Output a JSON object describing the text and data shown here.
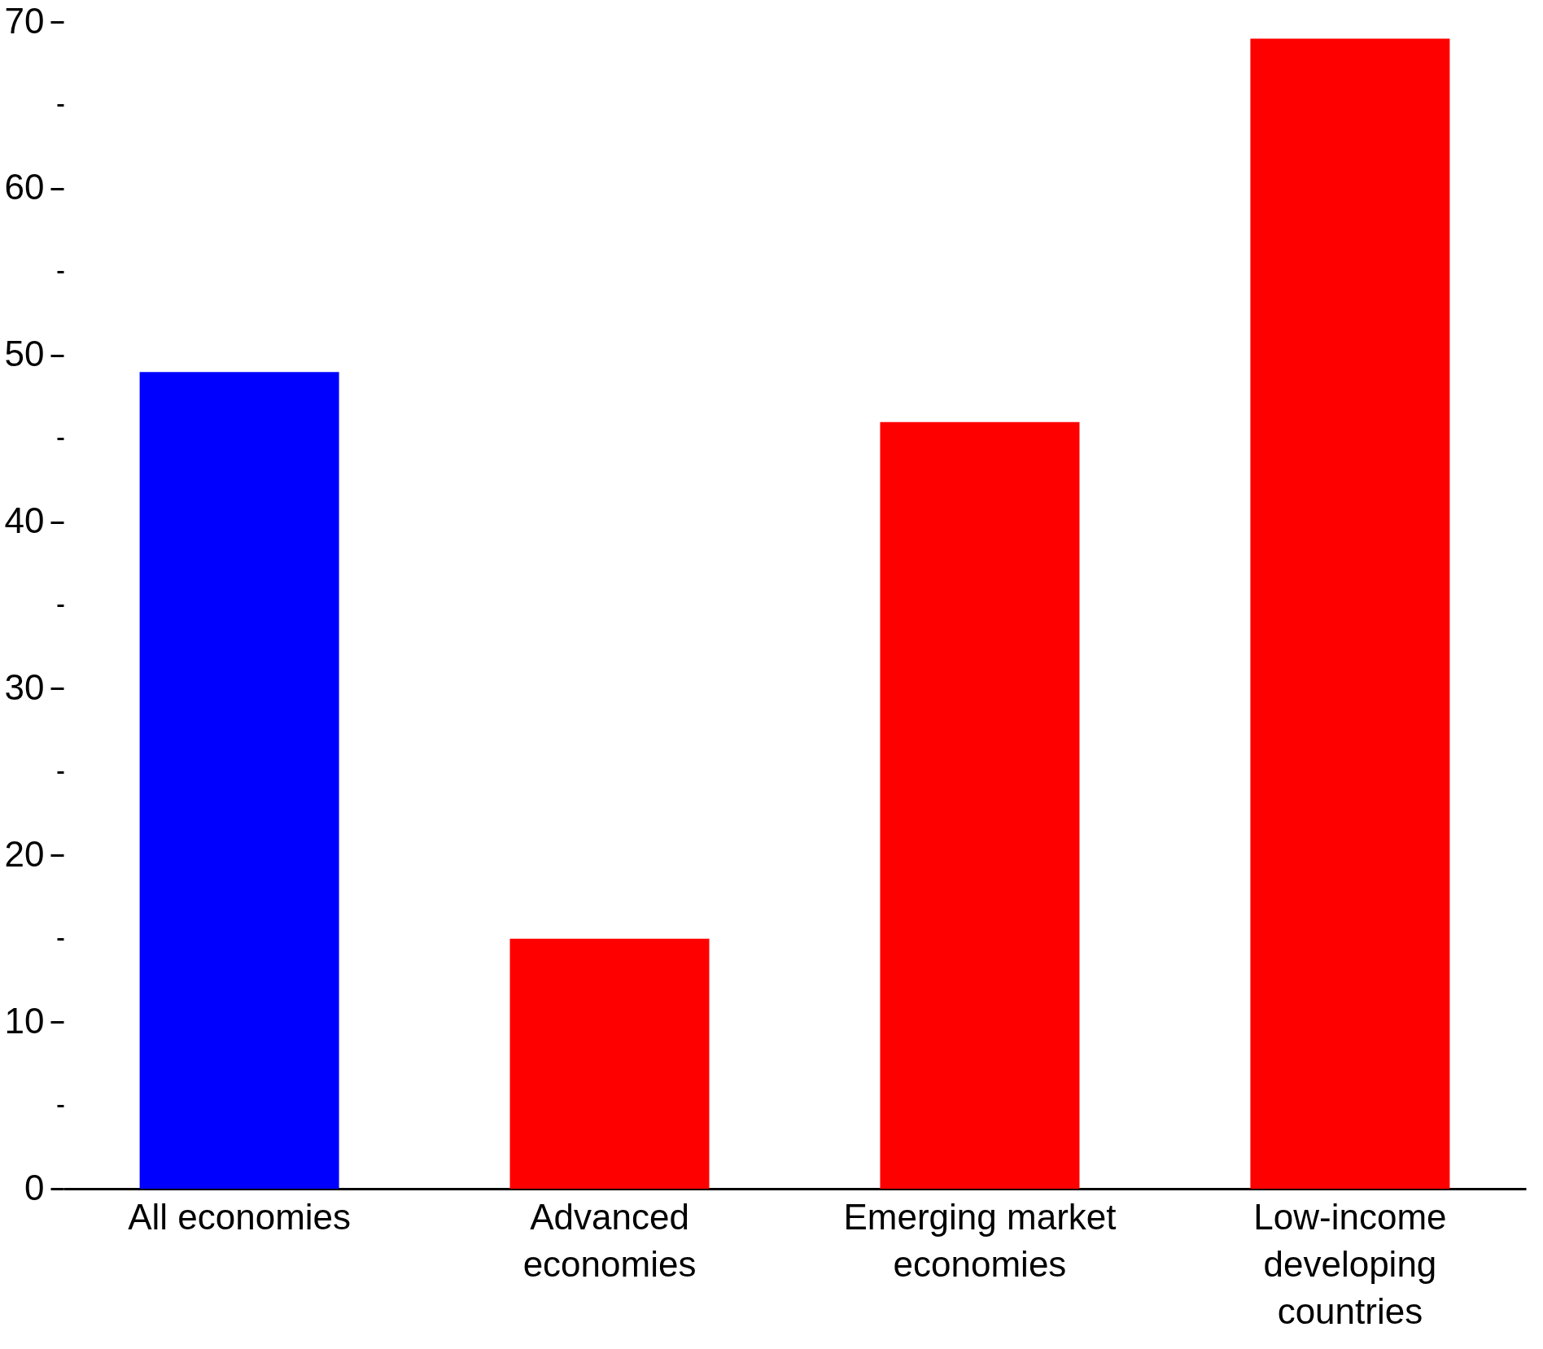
{
  "chart_data": {
    "type": "bar",
    "categories": [
      "All economies",
      "Advanced economies",
      "Emerging market economies",
      "Low-income developing countries"
    ],
    "values": [
      49,
      15,
      46,
      69
    ],
    "colors": [
      "#0000ff",
      "#ff0000",
      "#ff0000",
      "#ff0000"
    ],
    "ylim": [
      0,
      70
    ],
    "yticks": [
      0,
      {
        "value": 5,
        "label": null
      },
      10,
      {
        "value": 15,
        "label": null
      },
      20,
      {
        "value": 25,
        "label": null
      },
      30,
      {
        "value": 35,
        "label": null
      },
      40,
      {
        "value": 45,
        "label": null
      },
      50,
      {
        "value": 55,
        "label": null
      },
      60,
      {
        "value": 65,
        "label": null
      },
      70
    ],
    "grid": false
  }
}
